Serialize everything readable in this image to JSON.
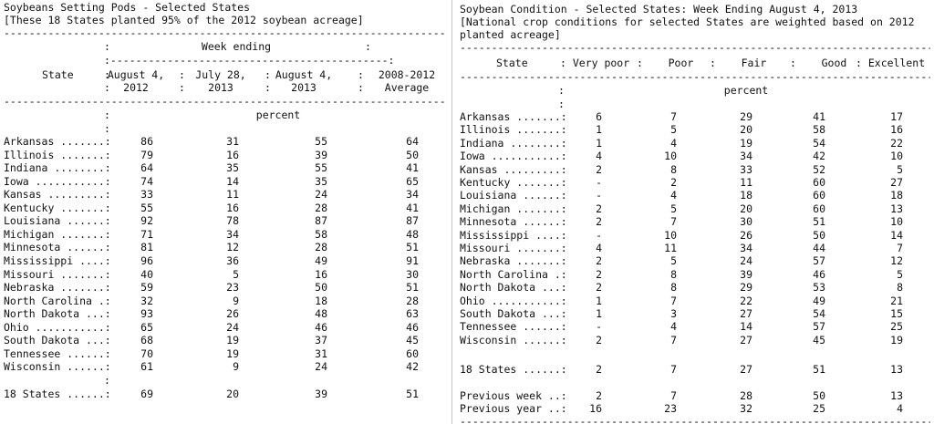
{
  "left": {
    "title": "Soybeans Setting Pods - Selected States",
    "subtitle": "[These 18 States planted 95% of the 2012 soybean acreage]",
    "week_ending_label": "Week ending",
    "state_header": "State",
    "columns": [
      {
        "line1": "August 4,",
        "line2": "2012"
      },
      {
        "line1": "July 28,",
        "line2": "2013"
      },
      {
        "line1": "August 4,",
        "line2": "2013"
      },
      {
        "line1": "2008-2012",
        "line2": "Average"
      }
    ],
    "unit": "percent",
    "rows": [
      {
        "state": "Arkansas .......:",
        "v": [
          "86",
          "31",
          "55",
          "64"
        ]
      },
      {
        "state": "Illinois .......:",
        "v": [
          "79",
          "16",
          "39",
          "50"
        ]
      },
      {
        "state": "Indiana ........:",
        "v": [
          "64",
          "35",
          "55",
          "41"
        ]
      },
      {
        "state": "Iowa ...........:",
        "v": [
          "74",
          "14",
          "35",
          "65"
        ]
      },
      {
        "state": "Kansas .........:",
        "v": [
          "33",
          "11",
          "24",
          "34"
        ]
      },
      {
        "state": "Kentucky .......:",
        "v": [
          "55",
          "16",
          "28",
          "41"
        ]
      },
      {
        "state": "Louisiana ......:",
        "v": [
          "92",
          "78",
          "87",
          "87"
        ]
      },
      {
        "state": "Michigan .......:",
        "v": [
          "71",
          "34",
          "58",
          "48"
        ]
      },
      {
        "state": "Minnesota ......:",
        "v": [
          "81",
          "12",
          "28",
          "51"
        ]
      },
      {
        "state": "Mississippi ....:",
        "v": [
          "96",
          "36",
          "49",
          "91"
        ]
      },
      {
        "state": "Missouri .......:",
        "v": [
          "40",
          "5",
          "16",
          "30"
        ]
      },
      {
        "state": "Nebraska .......:",
        "v": [
          "59",
          "23",
          "50",
          "51"
        ]
      },
      {
        "state": "North Carolina .:",
        "v": [
          "32",
          "9",
          "18",
          "28"
        ]
      },
      {
        "state": "North Dakota ...:",
        "v": [
          "93",
          "26",
          "48",
          "63"
        ]
      },
      {
        "state": "Ohio ...........:",
        "v": [
          "65",
          "24",
          "46",
          "46"
        ]
      },
      {
        "state": "South Dakota ...:",
        "v": [
          "68",
          "19",
          "37",
          "45"
        ]
      },
      {
        "state": "Tennessee ......:",
        "v": [
          "70",
          "19",
          "31",
          "60"
        ]
      },
      {
        "state": "Wisconsin ......:",
        "v": [
          "61",
          "9",
          "24",
          "42"
        ]
      }
    ],
    "total": {
      "state": "18 States ......:",
      "v": [
        "69",
        "20",
        "39",
        "51"
      ]
    }
  },
  "right": {
    "title": "Soybean Condition - Selected States: Week Ending August 4, 2013",
    "subtitle_1": "[National crop conditions for selected States are weighted based on 2012",
    "subtitle_2": "planted acreage]",
    "headers": [
      "State",
      ": Very poor",
      ":    Poor",
      ":    Fair",
      ":    Good",
      ": Excellent"
    ],
    "unit": "percent",
    "rows": [
      {
        "state": "Arkansas .......:",
        "v": [
          "6",
          "7",
          "29",
          "41",
          "17"
        ]
      },
      {
        "state": "Illinois .......:",
        "v": [
          "1",
          "5",
          "20",
          "58",
          "16"
        ]
      },
      {
        "state": "Indiana ........:",
        "v": [
          "1",
          "4",
          "19",
          "54",
          "22"
        ]
      },
      {
        "state": "Iowa ...........:",
        "v": [
          "4",
          "10",
          "34",
          "42",
          "10"
        ]
      },
      {
        "state": "Kansas .........:",
        "v": [
          "2",
          "8",
          "33",
          "52",
          "5"
        ]
      },
      {
        "state": "Kentucky .......:",
        "v": [
          "-",
          "2",
          "11",
          "60",
          "27"
        ]
      },
      {
        "state": "Louisiana ......:",
        "v": [
          "-",
          "4",
          "18",
          "60",
          "18"
        ]
      },
      {
        "state": "Michigan .......:",
        "v": [
          "2",
          "5",
          "20",
          "60",
          "13"
        ]
      },
      {
        "state": "Minnesota ......:",
        "v": [
          "2",
          "7",
          "30",
          "51",
          "10"
        ]
      },
      {
        "state": "Mississippi ....:",
        "v": [
          "-",
          "10",
          "26",
          "50",
          "14"
        ]
      },
      {
        "state": "Missouri .......:",
        "v": [
          "4",
          "11",
          "34",
          "44",
          "7"
        ]
      },
      {
        "state": "Nebraska .......:",
        "v": [
          "2",
          "5",
          "24",
          "57",
          "12"
        ]
      },
      {
        "state": "North Carolina .:",
        "v": [
          "2",
          "8",
          "39",
          "46",
          "5"
        ]
      },
      {
        "state": "North Dakota ...:",
        "v": [
          "2",
          "8",
          "29",
          "53",
          "8"
        ]
      },
      {
        "state": "Ohio ...........:",
        "v": [
          "1",
          "7",
          "22",
          "49",
          "21"
        ]
      },
      {
        "state": "South Dakota ...:",
        "v": [
          "1",
          "3",
          "27",
          "54",
          "15"
        ]
      },
      {
        "state": "Tennessee ......:",
        "v": [
          "-",
          "4",
          "14",
          "57",
          "25"
        ]
      },
      {
        "state": "Wisconsin ......:",
        "v": [
          "2",
          "7",
          "27",
          "45",
          "19"
        ]
      }
    ],
    "totals": [
      {
        "state": "18 States ......:",
        "v": [
          "2",
          "7",
          "27",
          "51",
          "13"
        ]
      },
      {
        "state": "Previous week ..:",
        "v": [
          "2",
          "7",
          "28",
          "50",
          "13"
        ]
      },
      {
        "state": "Previous year ..:",
        "v": [
          "16",
          "23",
          "32",
          "25",
          "4"
        ]
      }
    ]
  }
}
